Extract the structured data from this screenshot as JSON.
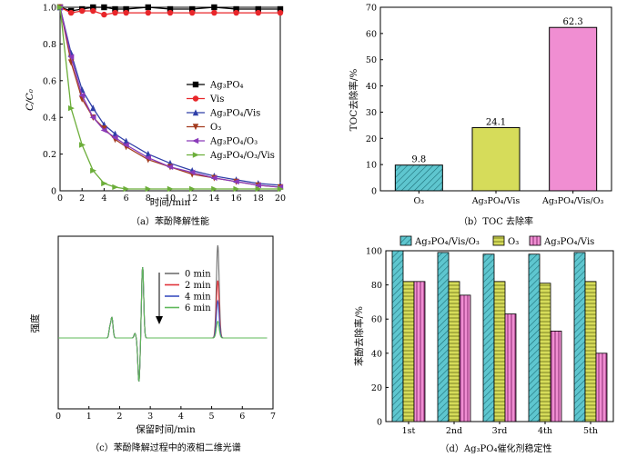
{
  "chart_data": [
    {
      "id": "a",
      "type": "line",
      "caption": "（a）苯酚降解性能",
      "xlabel": "时间/min",
      "ylabel": "C/C₀",
      "xlim": [
        0,
        20
      ],
      "ylim": [
        0,
        1.0
      ],
      "xticks": [
        "0",
        "2",
        "4",
        "6",
        "8",
        "10",
        "12",
        "14",
        "16",
        "18",
        "20"
      ],
      "yticks": [
        "0",
        "0.2",
        "0.4",
        "0.6",
        "0.8",
        "1.0"
      ],
      "legend_position": "right",
      "series": [
        {
          "name": "Ag₃PO₄",
          "color": "#000000",
          "marker": "square",
          "x": [
            0,
            1,
            2,
            3,
            4,
            5,
            6,
            8,
            10,
            12,
            14,
            16,
            18,
            20
          ],
          "y": [
            1.0,
            0.98,
            0.99,
            1.0,
            1.0,
            0.99,
            0.99,
            1.0,
            0.99,
            0.99,
            1.0,
            0.99,
            0.99,
            0.99
          ]
        },
        {
          "name": "Vis",
          "color": "#e8262a",
          "marker": "circle",
          "x": [
            0,
            1,
            2,
            3,
            4,
            5,
            6,
            8,
            10,
            12,
            14,
            16,
            18,
            20
          ],
          "y": [
            1.0,
            0.97,
            0.98,
            0.98,
            0.96,
            0.97,
            0.97,
            0.97,
            0.97,
            0.97,
            0.97,
            0.97,
            0.97,
            0.97
          ]
        },
        {
          "name": "Ag₃PO₄/Vis",
          "color": "#2f3fa8",
          "marker": "triangle-up",
          "x": [
            0,
            1,
            2,
            3,
            4,
            5,
            6,
            8,
            10,
            12,
            14,
            16,
            18,
            20
          ],
          "y": [
            1.0,
            0.75,
            0.55,
            0.45,
            0.36,
            0.31,
            0.27,
            0.2,
            0.15,
            0.11,
            0.08,
            0.06,
            0.04,
            0.03
          ]
        },
        {
          "name": "O₃",
          "color": "#a33b1f",
          "marker": "triangle-down",
          "x": [
            0,
            1,
            2,
            3,
            4,
            5,
            6,
            8,
            10,
            12,
            14,
            16,
            18,
            20
          ],
          "y": [
            1.0,
            0.7,
            0.5,
            0.4,
            0.34,
            0.28,
            0.24,
            0.17,
            0.13,
            0.09,
            0.07,
            0.05,
            0.03,
            0.02
          ]
        },
        {
          "name": "Ag₃PO₄/O₃",
          "color": "#8a3ab9",
          "marker": "triangle-left",
          "x": [
            0,
            1,
            2,
            3,
            4,
            5,
            6,
            8,
            10,
            12,
            14,
            16,
            18,
            20
          ],
          "y": [
            1.0,
            0.73,
            0.52,
            0.4,
            0.33,
            0.29,
            0.25,
            0.18,
            0.13,
            0.1,
            0.07,
            0.05,
            0.03,
            0.02
          ]
        },
        {
          "name": "Ag₃PO₄/O₃/Vis",
          "color": "#6cae3a",
          "marker": "triangle-right",
          "x": [
            0,
            1,
            2,
            3,
            4,
            5,
            6,
            8,
            10,
            12,
            14,
            16,
            18,
            20
          ],
          "y": [
            1.0,
            0.45,
            0.25,
            0.11,
            0.04,
            0.02,
            0.01,
            0.01,
            0.01,
            0.01,
            0.01,
            0.01,
            0.01,
            0.01
          ]
        }
      ]
    },
    {
      "id": "b",
      "type": "bar",
      "caption": "（b）TOC 去除率",
      "ylabel": "TOC去除率/%",
      "ylim": [
        0,
        70
      ],
      "yticks": [
        "0",
        "10",
        "20",
        "30",
        "40",
        "50",
        "60",
        "70"
      ],
      "categories": [
        "O₃",
        "Ag₃PO₄/Vis",
        "Ag₃PO₄/Vis/O₃"
      ],
      "values": [
        9.8,
        24.1,
        62.3
      ],
      "data_labels": [
        "9.8",
        "24.1",
        "62.3"
      ],
      "colors": [
        "#5ec6cf",
        "#d6dc5a",
        "#f08ed2"
      ]
    },
    {
      "id": "c",
      "type": "line",
      "caption": "（c）苯酚降解过程中的液相二维光谱",
      "xlabel": "保留时间/min",
      "ylabel": "强度",
      "xlim": [
        0,
        7
      ],
      "xticks": [
        "0",
        "1",
        "2",
        "3",
        "4",
        "5",
        "6",
        "7"
      ],
      "legend_position": "top-right",
      "series": [
        {
          "name": "0 min",
          "color": "#707070",
          "peak_height": 1.0
        },
        {
          "name": "2 min",
          "color": "#e0333a",
          "peak_height": 0.62
        },
        {
          "name": "4 min",
          "color": "#3a4fc0",
          "peak_height": 0.4
        },
        {
          "name": "6 min",
          "color": "#5fb85a",
          "peak_height": 0.18
        }
      ]
    },
    {
      "id": "d",
      "type": "bar",
      "caption": "（d）Ag₃PO₄催化剂稳定性",
      "ylabel": "苯酚去除率/%",
      "ylim": [
        0,
        100
      ],
      "yticks": [
        "0",
        "20",
        "40",
        "60",
        "80",
        "100"
      ],
      "categories": [
        "1st",
        "2nd",
        "3rd",
        "4th",
        "5th"
      ],
      "legend_position": "top",
      "series": [
        {
          "name": "Ag₃PO₄/Vis/O₃",
          "color": "#5ec6cf",
          "values": [
            100,
            99,
            98,
            98,
            99
          ]
        },
        {
          "name": "O₃",
          "color": "#d6dc5a",
          "values": [
            82,
            82,
            82,
            81,
            82
          ]
        },
        {
          "name": "Ag₃PO₄/Vis",
          "color": "#f08ed2",
          "values": [
            82,
            74,
            63,
            53,
            40
          ]
        }
      ]
    }
  ]
}
